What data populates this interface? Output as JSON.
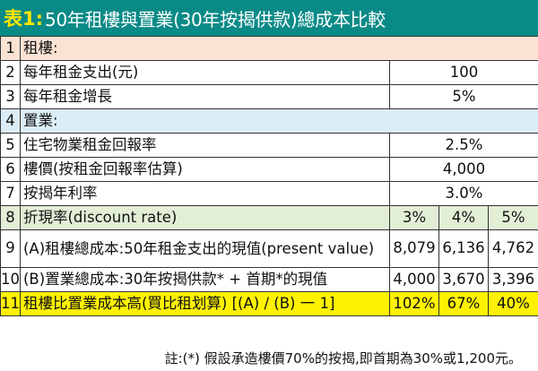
{
  "title": {
    "prefix": "表1:",
    "text": "50年租樓與置業(30年按揭供款)總成本比較"
  },
  "rows": [
    {
      "num": "1",
      "label": "租樓:",
      "value": ""
    },
    {
      "num": "2",
      "label": "每年租金支出(元)",
      "value": "100"
    },
    {
      "num": "3",
      "label": "每年租金增長",
      "value": "5%"
    },
    {
      "num": "4",
      "label": "置業:",
      "value": ""
    },
    {
      "num": "5",
      "label": "住宅物業租金回報率",
      "value": "2.5%"
    },
    {
      "num": "6",
      "label": "樓價(按租金回報率估算)",
      "value": "4,000"
    },
    {
      "num": "7",
      "label": "按揭年利率",
      "value": "3.0%"
    }
  ],
  "row8": {
    "num": "8",
    "label": "折現率(discount rate)",
    "cols": [
      "3%",
      "4%",
      "5%"
    ]
  },
  "row9": {
    "num": "9",
    "label": "(A)租樓總成本:50年租金支出的現值(present value)",
    "cols": [
      "8,079",
      "6,136",
      "4,762"
    ]
  },
  "row10": {
    "num": "10",
    "label": "(B)置業總成本:30年按揭供款* + 首期*的現值",
    "cols": [
      "4,000",
      "3,670",
      "3,396"
    ]
  },
  "row11": {
    "num": "11",
    "label": "租樓比置業成本高(買比租划算) [(A) / (B) 一 1]",
    "cols": [
      "102%",
      "67%",
      "40%"
    ]
  },
  "footnote": "註:(*) 假設承造樓價70%的按揭,即首期為30%或1,200元。",
  "colors": {
    "title_bg": "#0a8a86",
    "title_prefix": "#ffe600",
    "rent_section_bg": "#fbe3d4",
    "buy_section_bg": "#dbeef7",
    "discount_row_bg": "#e2efd6",
    "result_row_bg": "#fff200"
  }
}
